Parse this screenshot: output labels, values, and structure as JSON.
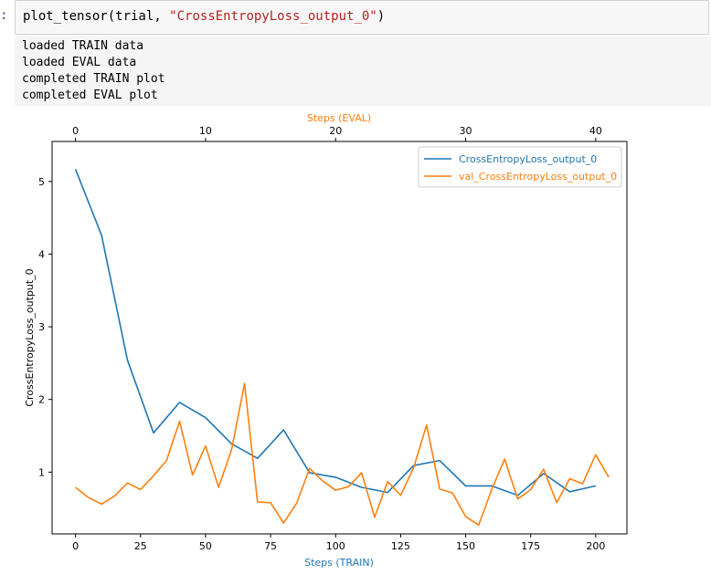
{
  "cell": {
    "prompt": ":",
    "code_prefix": "plot_tensor(trial, ",
    "code_string": "\"CrossEntropyLoss_output_0\"",
    "code_suffix": ")"
  },
  "output": {
    "lines": [
      "loaded TRAIN data",
      "loaded EVAL data",
      "completed TRAIN plot",
      "completed EVAL plot"
    ]
  },
  "chart_data": {
    "type": "line",
    "xlabel": "Steps (TRAIN)",
    "x2label": "Steps (EVAL)",
    "ylabel": "CrossEntropyLoss_output_0",
    "xlim": [
      -9,
      212
    ],
    "x2lim": [
      -1.8,
      42.4
    ],
    "ylim": [
      0.15,
      5.55
    ],
    "x_ticks": [
      0,
      25,
      50,
      75,
      100,
      125,
      150,
      175,
      200
    ],
    "x2_ticks": [
      0,
      10,
      20,
      30,
      40
    ],
    "y_ticks": [
      1,
      2,
      3,
      4,
      5
    ],
    "legend_position": "top-right",
    "series": [
      {
        "name": "CrossEntropyLoss_output_0",
        "color": "#1f77b4",
        "axis": "bottom",
        "x": [
          0,
          10,
          20,
          30,
          40,
          50,
          60,
          70,
          80,
          90,
          100,
          110,
          120,
          130,
          140,
          150,
          160,
          170,
          180,
          190,
          200
        ],
        "y": [
          5.17,
          4.26,
          2.54,
          1.54,
          1.96,
          1.75,
          1.39,
          1.19,
          1.58,
          0.99,
          0.93,
          0.79,
          0.72,
          1.09,
          1.16,
          0.81,
          0.81,
          0.68,
          0.98,
          0.73,
          0.81
        ]
      },
      {
        "name": "val_CrossEntropyLoss_output_0",
        "color": "#ff7f0e",
        "axis": "top",
        "x": [
          0,
          1,
          2,
          3,
          4,
          5,
          6,
          7,
          8,
          9,
          10,
          11,
          12,
          13,
          14,
          15,
          16,
          17,
          18,
          19,
          20,
          21,
          22,
          23,
          24,
          25,
          26,
          27,
          28,
          29,
          30,
          31,
          32,
          33,
          34,
          35,
          36,
          37,
          38,
          39,
          40,
          41
        ],
        "y": [
          0.79,
          0.65,
          0.56,
          0.67,
          0.85,
          0.76,
          0.95,
          1.16,
          1.7,
          0.96,
          1.36,
          0.79,
          1.31,
          2.22,
          0.59,
          0.58,
          0.3,
          0.57,
          1.05,
          0.88,
          0.75,
          0.8,
          0.99,
          0.38,
          0.87,
          0.68,
          1.06,
          1.65,
          0.77,
          0.71,
          0.39,
          0.27,
          0.76,
          1.18,
          0.63,
          0.76,
          1.04,
          0.58,
          0.91,
          0.84,
          1.24,
          0.93
        ]
      }
    ]
  }
}
